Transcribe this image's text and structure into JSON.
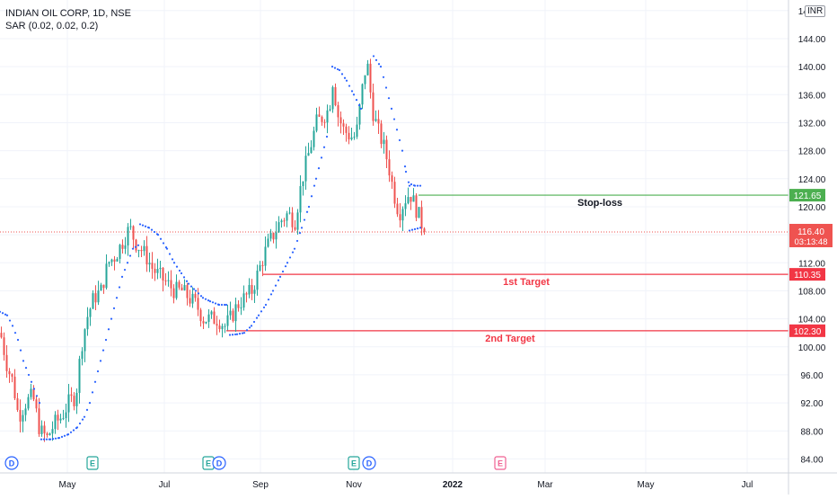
{
  "legend": {
    "symbol": "INDIAN OIL CORP, 1D, NSE",
    "indicator": "SAR (0.02, 0.02, 0.2)"
  },
  "currency": "INR",
  "chart_data": {
    "type": "candlestick",
    "ylim": [
      82,
      149
    ],
    "y_ticks": [
      "84.00",
      "88.00",
      "92.00",
      "96.00",
      "100.00",
      "104.00",
      "108.00",
      "112.00",
      "116.00",
      "120.00",
      "124.00",
      "128.00",
      "132.00",
      "136.00",
      "140.00",
      "144.00",
      "148.00"
    ],
    "x_ticks": [
      "May",
      "Jul",
      "Sep",
      "Nov",
      "2022",
      "Mar",
      "May",
      "Jul"
    ],
    "last_price": "116.40",
    "countdown": "03:13:48",
    "levels": [
      {
        "name": "Stop-loss",
        "value": 121.65,
        "label": "121.65",
        "color": "#4caf50"
      },
      {
        "name": "1st Target",
        "value": 110.35,
        "label": "110.35",
        "color": "#f23645"
      },
      {
        "name": "2nd Target",
        "value": 102.3,
        "label": "102.30",
        "color": "#f23645"
      }
    ],
    "price_path": [
      [
        0,
        102
      ],
      [
        8,
        97
      ],
      [
        14,
        95
      ],
      [
        20,
        90
      ],
      [
        28,
        92
      ],
      [
        36,
        93
      ],
      [
        44,
        88
      ],
      [
        52,
        87
      ],
      [
        60,
        89
      ],
      [
        68,
        90
      ],
      [
        76,
        92
      ],
      [
        84,
        93
      ],
      [
        90,
        100
      ],
      [
        96,
        104
      ],
      [
        104,
        107
      ],
      [
        112,
        108
      ],
      [
        120,
        112
      ],
      [
        128,
        113
      ],
      [
        136,
        115
      ],
      [
        144,
        117
      ],
      [
        150,
        115
      ],
      [
        156,
        114
      ],
      [
        162,
        113
      ],
      [
        170,
        111
      ],
      [
        178,
        110
      ],
      [
        186,
        109
      ],
      [
        194,
        108
      ],
      [
        202,
        108
      ],
      [
        210,
        107
      ],
      [
        218,
        106
      ],
      [
        226,
        104
      ],
      [
        234,
        104
      ],
      [
        242,
        104
      ],
      [
        250,
        103
      ],
      [
        256,
        104
      ],
      [
        264,
        106
      ],
      [
        272,
        107
      ],
      [
        280,
        108
      ],
      [
        288,
        111
      ],
      [
        296,
        114
      ],
      [
        304,
        116
      ],
      [
        312,
        118
      ],
      [
        320,
        119
      ],
      [
        328,
        118
      ],
      [
        336,
        124
      ],
      [
        344,
        128
      ],
      [
        352,
        132
      ],
      [
        360,
        133
      ],
      [
        366,
        134
      ],
      [
        370,
        138
      ],
      [
        376,
        133
      ],
      [
        382,
        131
      ],
      [
        390,
        130
      ],
      [
        396,
        130
      ],
      [
        402,
        136
      ],
      [
        408,
        141
      ],
      [
        414,
        134
      ],
      [
        420,
        131
      ],
      [
        426,
        129
      ],
      [
        432,
        126
      ],
      [
        438,
        122
      ],
      [
        444,
        119
      ],
      [
        450,
        121
      ],
      [
        456,
        122
      ],
      [
        462,
        120
      ],
      [
        468,
        118
      ],
      [
        472,
        116.4
      ]
    ],
    "sar_segments": [
      [
        [
          0,
          105
        ],
        [
          8,
          104.5
        ],
        [
          14,
          103
        ],
        [
          20,
          101
        ],
        [
          26,
          98
        ],
        [
          32,
          96
        ],
        [
          38,
          94
        ],
        [
          44,
          92
        ]
      ],
      [
        [
          46,
          86.8
        ],
        [
          56,
          86.8
        ],
        [
          66,
          87
        ],
        [
          76,
          87.5
        ],
        [
          86,
          88.5
        ],
        [
          94,
          90
        ],
        [
          100,
          92
        ],
        [
          106,
          95
        ],
        [
          112,
          98
        ],
        [
          118,
          101
        ],
        [
          124,
          104
        ],
        [
          130,
          107
        ],
        [
          136,
          110
        ],
        [
          142,
          112
        ],
        [
          148,
          114
        ],
        [
          154,
          114.5
        ]
      ],
      [
        [
          156,
          117.5
        ],
        [
          166,
          117
        ],
        [
          176,
          116
        ],
        [
          186,
          114
        ],
        [
          194,
          112
        ],
        [
          202,
          110.5
        ],
        [
          210,
          109
        ],
        [
          218,
          108
        ],
        [
          226,
          107
        ],
        [
          234,
          106.5
        ],
        [
          244,
          106
        ],
        [
          252,
          106
        ]
      ],
      [
        [
          256,
          101.7
        ],
        [
          264,
          101.8
        ],
        [
          272,
          102
        ],
        [
          280,
          103
        ],
        [
          288,
          104.5
        ],
        [
          296,
          106
        ],
        [
          304,
          108
        ],
        [
          312,
          110
        ],
        [
          320,
          112
        ],
        [
          328,
          114
        ],
        [
          336,
          117
        ],
        [
          344,
          120
        ],
        [
          352,
          124
        ],
        [
          358,
          127
        ],
        [
          364,
          130
        ]
      ],
      [
        [
          370,
          140
        ],
        [
          378,
          139.5
        ],
        [
          386,
          138
        ],
        [
          394,
          136
        ],
        [
          402,
          134
        ]
      ],
      [
        [
          416,
          141.5
        ],
        [
          424,
          140
        ],
        [
          430,
          137
        ],
        [
          436,
          134
        ],
        [
          442,
          131
        ],
        [
          448,
          128
        ],
        [
          452,
          125
        ],
        [
          456,
          123
        ]
      ],
      [
        [
          458,
          123.2
        ],
        [
          462,
          123
        ],
        [
          468,
          123
        ]
      ],
      [
        [
          456,
          116.6
        ],
        [
          462,
          116.8
        ],
        [
          468,
          117
        ]
      ]
    ],
    "events": [
      {
        "label": "D",
        "kind": "dividend"
      },
      {
        "label": "E",
        "kind": "earnings"
      },
      {
        "label": "E",
        "kind": "earnings"
      },
      {
        "label": "D",
        "kind": "dividend"
      },
      {
        "label": "E",
        "kind": "earnings"
      },
      {
        "label": "D",
        "kind": "dividend"
      },
      {
        "label": "E",
        "kind": "earnings-future"
      }
    ]
  },
  "colors": {
    "up": "#26a69a",
    "down": "#ef5350",
    "sar": "#2962ff",
    "grid": "#f0f3fa",
    "axis_text": "#131722",
    "stoploss_text": "#131722",
    "target_text": "#f23645"
  }
}
